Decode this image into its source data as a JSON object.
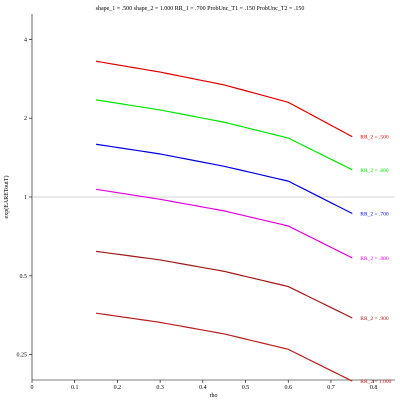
{
  "chart_data": {
    "type": "line",
    "title": "shape_1 = .500  shape_2 = 1.000  RR_1 = .700  ProbUnc_T1 = .150  ProbUnc_T2 = .150",
    "xlabel": "rho",
    "ylabel": "exp(EAREToutT)",
    "xlim": [
      0,
      0.85
    ],
    "ylim": [
      0.2,
      5.0
    ],
    "y_scale": "log",
    "x_ticks": [
      0,
      0.1,
      0.2,
      0.3,
      0.4,
      0.5,
      0.6,
      0.7,
      0.8
    ],
    "x_tick_labels": [
      "0",
      "0.1",
      "0.2",
      "0.3",
      "0.4",
      "0.5",
      "0.6",
      "0.7",
      "0.8"
    ],
    "y_ticks": [
      0.25,
      0.5,
      1,
      2,
      4
    ],
    "y_tick_labels": [
      "0.25",
      "0.5",
      "1",
      "2",
      "4"
    ],
    "reference_line": 1,
    "x": [
      0.15,
      0.3,
      0.45,
      0.6,
      0.75
    ],
    "series": [
      {
        "name": "RR_2 = .500",
        "color": "#e00000",
        "values": [
          3.3,
          3.0,
          2.68,
          2.3,
          1.7
        ]
      },
      {
        "name": "RR_2 = .600",
        "color": "#00e600",
        "values": [
          2.35,
          2.15,
          1.93,
          1.68,
          1.27
        ]
      },
      {
        "name": "RR_2 = .700",
        "color": "#0000e0",
        "values": [
          1.59,
          1.46,
          1.31,
          1.15,
          0.865
        ]
      },
      {
        "name": "RR_2 = .800",
        "color": "#e000e0",
        "values": [
          1.07,
          0.98,
          0.885,
          0.775,
          0.585
        ]
      },
      {
        "name": "RR_2 = .900",
        "color": "#a01818",
        "values": [
          0.62,
          0.575,
          0.52,
          0.455,
          0.345
        ]
      },
      {
        "name": "RR_2 = 1.000",
        "color": "#b81e1e",
        "values": [
          0.36,
          0.332,
          0.3,
          0.262,
          0.198
        ]
      }
    ]
  }
}
